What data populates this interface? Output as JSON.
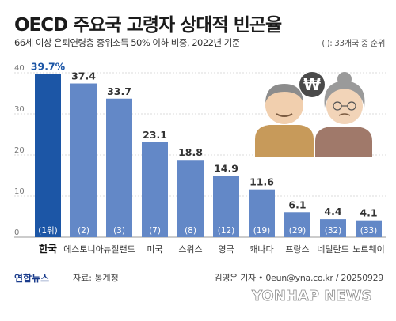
{
  "header": {
    "title": "OECD 주요국 고령자 상대적 빈곤율",
    "subtitle": "66세 이상 은퇴연령층 중위소득 50% 이하 비중, 2022년 기준",
    "note": "( ): 33개국 중 순위"
  },
  "footer": {
    "logo": "연합뉴스",
    "source": "자료: 통계청",
    "credit": "김영은 기자 • 0eun@yna.co.kr / 20250929",
    "watermark": "YONHAP NEWS"
  },
  "colors": {
    "highlight_bar": "#1c56a6",
    "bar": "#6388c7",
    "highlight_label": "#1c56a6",
    "label": "#333333",
    "grid": "#cfcfcf"
  },
  "illustration": "elderly-couple-with-won-coin-icon",
  "chart_data": {
    "type": "bar",
    "categories": [
      "한국",
      "에스토니아",
      "뉴질랜드",
      "미국",
      "스위스",
      "영국",
      "캐나다",
      "프랑스",
      "네덜란드",
      "노르웨이"
    ],
    "values": [
      39.7,
      37.4,
      33.7,
      23.1,
      18.8,
      14.9,
      11.6,
      6.1,
      4.4,
      4.1
    ],
    "value_labels": [
      "39.7%",
      "37.4",
      "33.7",
      "23.1",
      "18.8",
      "14.9",
      "11.6",
      "6.1",
      "4.4",
      "4.1"
    ],
    "ranks": [
      "(1위)",
      "(2)",
      "(3)",
      "(7)",
      "(8)",
      "(12)",
      "(19)",
      "(29)",
      "(32)",
      "(33)"
    ],
    "yticks": [
      "0",
      "10",
      "20",
      "30",
      "40"
    ],
    "ylim": [
      0,
      40
    ],
    "highlight_index": 0,
    "grid": true
  }
}
